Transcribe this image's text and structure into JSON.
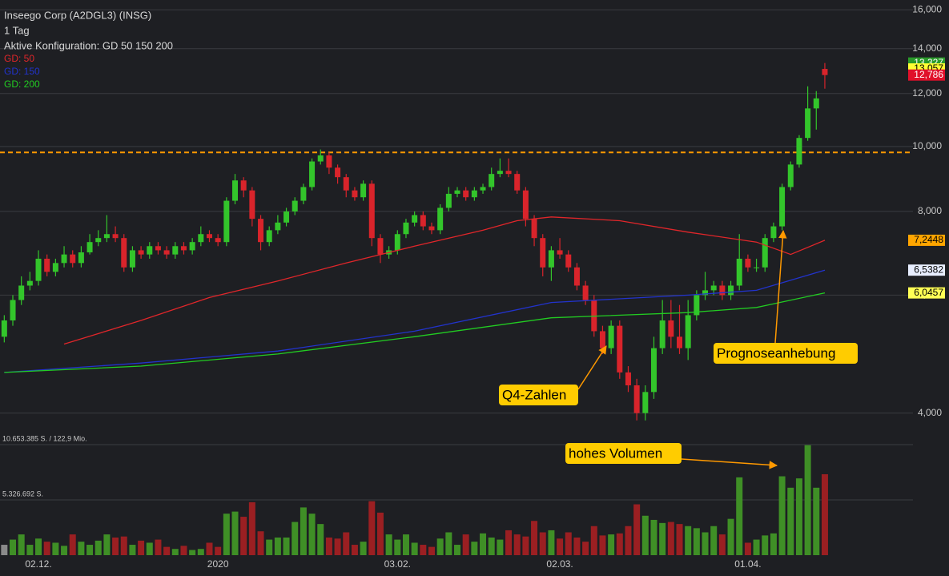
{
  "header": {
    "title": "Inseego Corp (A2DGL3) (INSG)",
    "interval": "1 Tag",
    "config": "Aktive Konfiguration: GD 50 150 200"
  },
  "chart_data": {
    "type": "candlestick",
    "log": true,
    "grid": true,
    "open": [
      5.2,
      5.5,
      5.9,
      6.2,
      6.3,
      6.8,
      6.5,
      6.7,
      6.9,
      6.7,
      6.95,
      7.2,
      7.3,
      7.4,
      7.3,
      6.6,
      7.0,
      6.9,
      7.1,
      7.0,
      6.9,
      7.1,
      7.0,
      7.2,
      7.4,
      7.3,
      7.2,
      8.3,
      8.9,
      8.6,
      7.8,
      7.2,
      7.5,
      7.7,
      8.0,
      8.3,
      8.7,
      9.5,
      9.7,
      9.3,
      9.0,
      8.6,
      8.4,
      8.8,
      7.3,
      6.9,
      7.0,
      7.4,
      7.7,
      7.9,
      7.6,
      7.5,
      8.1,
      8.5,
      8.6,
      8.4,
      8.6,
      8.7,
      9.1,
      9.2,
      9.1,
      8.6,
      7.8,
      7.3,
      6.6,
      7.0,
      6.9,
      6.6,
      6.2,
      5.9,
      5.3,
      5.0,
      5.4,
      4.6,
      4.4,
      4.0,
      4.3,
      5.0,
      5.5,
      5.2,
      5.0,
      5.6,
      6.0,
      6.1,
      6.2,
      6.0,
      6.2,
      6.8,
      6.6,
      6.6,
      7.3,
      7.6,
      8.7,
      9.4,
      10.3,
      11.4,
      13.057
    ],
    "high": [
      5.6,
      6.0,
      6.4,
      6.5,
      7.0,
      6.9,
      6.8,
      7.1,
      7.0,
      7.1,
      7.4,
      7.5,
      7.9,
      7.6,
      7.4,
      7.1,
      7.1,
      7.2,
      7.2,
      7.1,
      7.2,
      7.2,
      7.3,
      7.6,
      7.5,
      7.4,
      8.4,
      9.1,
      9.0,
      8.7,
      7.9,
      7.6,
      7.9,
      8.1,
      8.4,
      8.8,
      9.6,
      9.9,
      9.8,
      9.4,
      9.1,
      8.7,
      8.9,
      8.9,
      7.4,
      7.1,
      7.5,
      7.8,
      8.0,
      8.0,
      7.7,
      8.2,
      8.7,
      8.7,
      8.7,
      8.7,
      8.8,
      9.3,
      9.6,
      9.6,
      9.2,
      8.7,
      7.9,
      7.4,
      7.1,
      7.3,
      7.0,
      6.7,
      6.3,
      6.0,
      5.4,
      5.5,
      5.5,
      4.7,
      4.5,
      4.4,
      5.2,
      5.9,
      5.9,
      5.8,
      5.9,
      6.1,
      6.5,
      6.3,
      6.3,
      6.3,
      7.4,
      6.9,
      6.8,
      7.4,
      7.7,
      8.8,
      9.5,
      10.4,
      12.3,
      12.1,
      13.327
    ],
    "low": [
      5.1,
      5.4,
      5.8,
      6.1,
      6.2,
      6.4,
      6.4,
      6.6,
      6.6,
      6.6,
      6.9,
      7.1,
      7.2,
      7.2,
      6.5,
      6.5,
      6.8,
      6.8,
      6.9,
      6.8,
      6.8,
      6.9,
      6.9,
      7.1,
      7.2,
      7.1,
      7.1,
      8.2,
      8.4,
      7.6,
      7.0,
      7.1,
      7.4,
      7.6,
      7.9,
      8.2,
      8.6,
      9.4,
      9.1,
      8.8,
      8.4,
      8.3,
      8.3,
      7.1,
      6.7,
      6.8,
      6.9,
      7.3,
      7.6,
      7.5,
      7.4,
      7.4,
      8.0,
      8.4,
      8.3,
      8.3,
      8.5,
      8.6,
      9.0,
      9.0,
      8.5,
      7.6,
      7.1,
      6.4,
      6.3,
      6.8,
      6.5,
      6.1,
      5.8,
      5.2,
      4.9,
      4.9,
      4.5,
      4.3,
      3.9,
      3.9,
      4.2,
      4.9,
      5.0,
      4.9,
      4.8,
      5.5,
      5.9,
      6.0,
      5.9,
      5.9,
      6.1,
      6.5,
      6.5,
      6.5,
      7.2,
      7.5,
      8.6,
      9.3,
      10.2,
      10.6,
      12.2
    ],
    "close": [
      5.5,
      5.9,
      6.2,
      6.3,
      6.8,
      6.5,
      6.7,
      6.9,
      6.7,
      6.95,
      7.2,
      7.3,
      7.4,
      7.3,
      6.6,
      7.0,
      6.9,
      7.1,
      7.0,
      6.9,
      7.1,
      7.0,
      7.2,
      7.4,
      7.3,
      7.2,
      8.3,
      8.9,
      8.6,
      7.8,
      7.2,
      7.5,
      7.7,
      8.0,
      8.3,
      8.7,
      9.5,
      9.7,
      9.3,
      9.0,
      8.6,
      8.4,
      8.8,
      7.3,
      6.9,
      7.0,
      7.4,
      7.7,
      7.9,
      7.6,
      7.5,
      8.1,
      8.5,
      8.6,
      8.4,
      8.6,
      8.7,
      9.1,
      9.2,
      9.1,
      8.6,
      7.8,
      7.3,
      6.6,
      7.0,
      6.9,
      6.6,
      6.2,
      5.9,
      5.3,
      5.0,
      5.4,
      4.6,
      4.4,
      4.0,
      4.3,
      5.0,
      5.5,
      5.2,
      5.0,
      5.6,
      6.0,
      6.1,
      6.2,
      6.0,
      6.2,
      6.8,
      6.6,
      6.6,
      7.3,
      7.6,
      8.7,
      9.4,
      10.3,
      11.4,
      11.8,
      12.786
    ],
    "volume": [
      1000000,
      1500000,
      2000000,
      1000000,
      1600000,
      1300000,
      1200000,
      900000,
      2000000,
      1300000,
      1000000,
      1400000,
      2000000,
      1700000,
      1800000,
      1000000,
      1400000,
      1200000,
      1500000,
      800000,
      600000,
      900000,
      500000,
      600000,
      1200000,
      800000,
      4000000,
      4200000,
      3700000,
      5100000,
      2300000,
      1500000,
      1700000,
      1700000,
      3200000,
      4600000,
      4000000,
      3000000,
      1700000,
      1600000,
      2200000,
      1000000,
      1300000,
      5200000,
      4100000,
      2000000,
      1500000,
      2000000,
      1200000,
      1000000,
      800000,
      1600000,
      2200000,
      1000000,
      2000000,
      1300000,
      2100000,
      1700000,
      1500000,
      2400000,
      2000000,
      1800000,
      3300000,
      2200000,
      2400000,
      1600000,
      2200000,
      1700000,
      1300000,
      2800000,
      1900000,
      2000000,
      2100000,
      2800000,
      4900000,
      3800000,
      3400000,
      3100000,
      3200000,
      3000000,
      2800000,
      2600000,
      2200000,
      2800000,
      2000000,
      3500000,
      7500000,
      1200000,
      1500000,
      1900000,
      2100000,
      7600000,
      6500000,
      7400000,
      10600000,
      6500000,
      7800000
    ],
    "up_color": "#33c52b",
    "down_color": "#d9242b",
    "vol_up_color": "#3f8f26",
    "vol_down_color": "#9b1f22",
    "vol_first_color": "#8a8a8a",
    "ylim": [
      3.74,
      16.55
    ],
    "yticks": [
      {
        "value": 4,
        "label": "4,000"
      },
      {
        "value": 6,
        "label": "6,000"
      },
      {
        "value": 8,
        "label": "8,000"
      },
      {
        "value": 10,
        "label": "10,000"
      },
      {
        "value": 12,
        "label": "12,000"
      },
      {
        "value": 14,
        "label": "14,000"
      },
      {
        "value": 16,
        "label": "16,000"
      }
    ],
    "xlim": [
      -0.5,
      103.5
    ],
    "xticks": [
      {
        "value": 4,
        "label": "02.12."
      },
      {
        "value": 25,
        "label": "2020"
      },
      {
        "value": 46,
        "label": "03.02."
      },
      {
        "value": 65,
        "label": "02.03."
      },
      {
        "value": 87,
        "label": "01.04."
      }
    ],
    "vlim": [
      0,
      10653385
    ],
    "vticks": [
      {
        "value": 10653385,
        "label": "10.653.385 S. / 122,9 Mio."
      },
      {
        "value": 5326692,
        "label": "5.326.692 S."
      }
    ],
    "series": [
      {
        "name": "GD: 50",
        "color": "#e0262a",
        "x": [
          7,
          16,
          24,
          32,
          40,
          48,
          56,
          60,
          64,
          72,
          80,
          88,
          92,
          96
        ],
        "values": [
          5.07,
          5.5,
          5.95,
          6.3,
          6.7,
          7.1,
          7.5,
          7.75,
          7.85,
          7.75,
          7.45,
          7.2,
          6.9,
          7.2448
        ]
      },
      {
        "name": "GD: 150",
        "color": "#2233cc",
        "x": [
          0,
          16,
          32,
          48,
          64,
          80,
          88,
          96
        ],
        "values": [
          4.6,
          4.75,
          4.95,
          5.3,
          5.85,
          6.0,
          6.1,
          6.5382
        ]
      },
      {
        "name": "GD: 200",
        "color": "#22cc22",
        "x": [
          0,
          16,
          32,
          48,
          64,
          80,
          88,
          96
        ],
        "values": [
          4.6,
          4.7,
          4.9,
          5.2,
          5.55,
          5.65,
          5.75,
          6.0457
        ]
      }
    ],
    "hline": {
      "value": 9.8,
      "color": "#ff9900"
    },
    "price_labels": [
      {
        "value": 13.327,
        "label": "13,327",
        "color": "#2a9a2a",
        "text_color": "#ffffff"
      },
      {
        "value": 13.057,
        "label": "13,057",
        "color": "#ffff33",
        "text_color": "#000000"
      },
      {
        "value": 12.786,
        "label": "12,786",
        "color": "#e0102a",
        "text_color": "#ffffff"
      },
      {
        "value": 7.2448,
        "label": "7,2448",
        "color": "#ffa500",
        "text_color": "#000000"
      },
      {
        "value": 6.5382,
        "label": "6,5382",
        "color": "#e8eeff",
        "text_color": "#000000"
      },
      {
        "value": 6.0457,
        "label": "6,0457",
        "color": "#ffff55",
        "text_color": "#000000"
      }
    ],
    "annotations": [
      "Q4-Zahlen",
      "Prognoseanhebung",
      "hohes Volumen"
    ]
  }
}
